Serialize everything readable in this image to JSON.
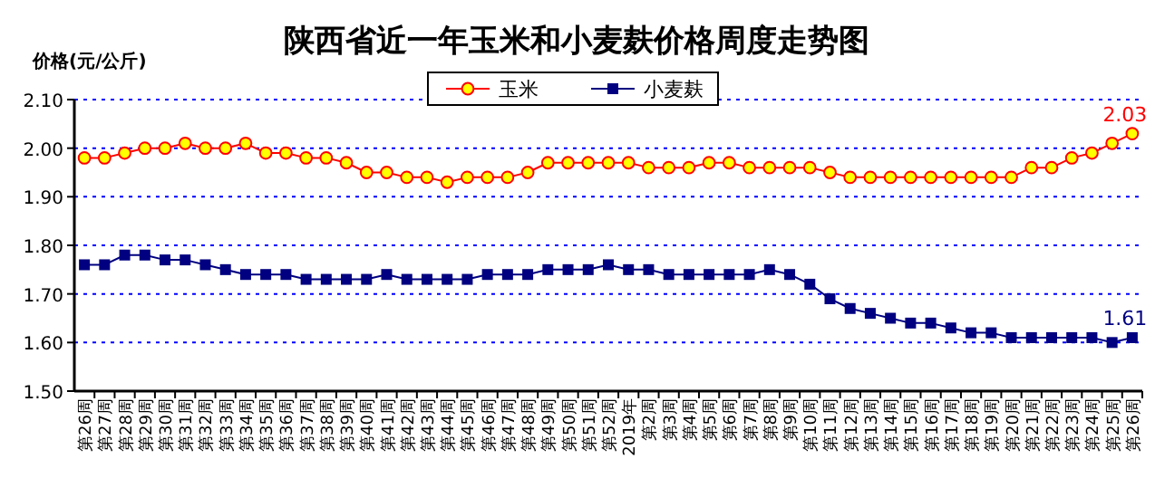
{
  "chart_data": {
    "type": "line",
    "title": "陕西省近一年玉米和小麦麸价格周度走势图",
    "ylabel": "价格(元/公斤)",
    "categories": [
      "第26周",
      "第27周",
      "第28周",
      "第29周",
      "第30周",
      "第31周",
      "第32周",
      "第33周",
      "第34周",
      "第35周",
      "第36周",
      "第37周",
      "第38周",
      "第39周",
      "第40周",
      "第41周",
      "第42周",
      "第43周",
      "第44周",
      "第45周",
      "第46周",
      "第47周",
      "第48周",
      "第49周",
      "第50周",
      "第51周",
      "第52周",
      "2019年",
      "第2周",
      "第3周",
      "第4周",
      "第5周",
      "第6周",
      "第7周",
      "第8周",
      "第9周",
      "第10周",
      "第11周",
      "第12周",
      "第13周",
      "第14周",
      "第15周",
      "第16周",
      "第17周",
      "第18周",
      "第19周",
      "第20周",
      "第21周",
      "第22周",
      "第23周",
      "第24周",
      "第25周",
      "第26周"
    ],
    "series": [
      {
        "name": "玉米",
        "color": "#ff0000",
        "marker": "circle",
        "values": [
          1.98,
          1.98,
          1.99,
          2.0,
          2.0,
          2.01,
          2.0,
          2.0,
          2.01,
          1.99,
          1.99,
          1.98,
          1.98,
          1.97,
          1.95,
          1.95,
          1.94,
          1.94,
          1.93,
          1.94,
          1.94,
          1.94,
          1.95,
          1.97,
          1.97,
          1.97,
          1.97,
          1.97,
          1.96,
          1.96,
          1.96,
          1.97,
          1.97,
          1.96,
          1.96,
          1.96,
          1.96,
          1.95,
          1.94,
          1.94,
          1.94,
          1.94,
          1.94,
          1.94,
          1.94,
          1.94,
          1.94,
          1.96,
          1.96,
          1.98,
          1.99,
          2.01,
          2.03
        ],
        "value_labels": [
          null,
          null,
          null,
          null,
          null,
          null,
          null,
          null,
          null,
          null,
          null,
          null,
          null,
          null,
          null,
          null,
          null,
          null,
          null,
          null,
          null,
          null,
          null,
          null,
          null,
          null,
          null,
          null,
          null,
          null,
          null,
          null,
          null,
          null,
          null,
          null,
          null,
          null,
          null,
          null,
          null,
          null,
          null,
          null,
          null,
          null,
          null,
          null,
          null,
          null,
          null,
          null,
          "2.03"
        ]
      },
      {
        "name": "小麦麸",
        "color": "#000080",
        "marker": "square",
        "values": [
          1.76,
          1.76,
          1.78,
          1.78,
          1.77,
          1.77,
          1.76,
          1.75,
          1.74,
          1.74,
          1.74,
          1.73,
          1.73,
          1.73,
          1.73,
          1.74,
          1.73,
          1.73,
          1.73,
          1.73,
          1.74,
          1.74,
          1.74,
          1.75,
          1.75,
          1.75,
          1.76,
          1.75,
          1.75,
          1.74,
          1.74,
          1.74,
          1.74,
          1.74,
          1.75,
          1.74,
          1.72,
          1.69,
          1.67,
          1.66,
          1.65,
          1.64,
          1.64,
          1.63,
          1.62,
          1.62,
          1.61,
          1.61,
          1.61,
          1.61,
          1.61,
          1.6,
          1.61
        ],
        "value_labels": [
          null,
          null,
          null,
          null,
          null,
          null,
          null,
          null,
          null,
          null,
          null,
          null,
          null,
          null,
          null,
          null,
          null,
          null,
          null,
          null,
          null,
          null,
          null,
          null,
          null,
          null,
          null,
          null,
          null,
          null,
          null,
          null,
          null,
          null,
          null,
          null,
          null,
          null,
          null,
          null,
          null,
          null,
          null,
          null,
          null,
          null,
          null,
          null,
          null,
          null,
          null,
          null,
          "1.61"
        ]
      }
    ],
    "ylim": [
      1.5,
      2.1
    ],
    "yticks": [
      {
        "value": 1.5,
        "label": "1.50"
      },
      {
        "value": 1.6,
        "label": "1.60"
      },
      {
        "value": 1.7,
        "label": "1.70"
      },
      {
        "value": 1.8,
        "label": "1.80"
      },
      {
        "value": 1.9,
        "label": "1.90"
      },
      {
        "value": 2.0,
        "label": "2.00"
      },
      {
        "value": 2.1,
        "label": "2.10"
      }
    ],
    "grid": "y",
    "legend": "top",
    "line_style": "solid"
  }
}
